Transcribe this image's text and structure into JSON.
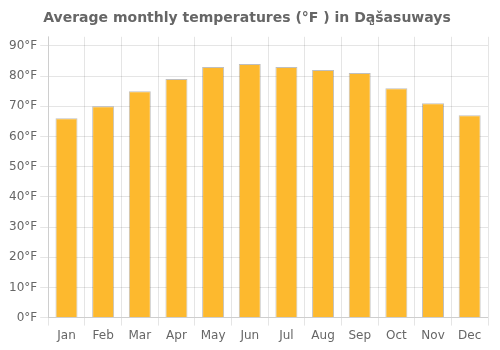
{
  "chart_data": {
    "type": "bar",
    "title": "Average monthly temperatures (°F ) in Da̧̩šasuways",
    "categories": [
      "Jan",
      "Feb",
      "Mar",
      "Apr",
      "May",
      "Jun",
      "Jul",
      "Aug",
      "Sep",
      "Oct",
      "Nov",
      "Dec"
    ],
    "values": [
      66,
      70,
      75,
      79,
      83,
      84,
      83,
      82,
      81,
      76,
      71,
      67
    ],
    "color": "#FDB92E",
    "ylim": [
      0,
      93
    ],
    "yticks": [
      {
        "value": 0,
        "label": "0°F"
      },
      {
        "value": 10,
        "label": "10°F"
      },
      {
        "value": 20,
        "label": "20°F"
      },
      {
        "value": 30,
        "label": "30°F"
      },
      {
        "value": 40,
        "label": "40°F"
      },
      {
        "value": 50,
        "label": "50°F"
      },
      {
        "value": 60,
        "label": "60°F"
      },
      {
        "value": 70,
        "label": "70°F"
      },
      {
        "value": 80,
        "label": "80°F"
      },
      {
        "value": 90,
        "label": "90°F"
      }
    ],
    "grid": true
  }
}
